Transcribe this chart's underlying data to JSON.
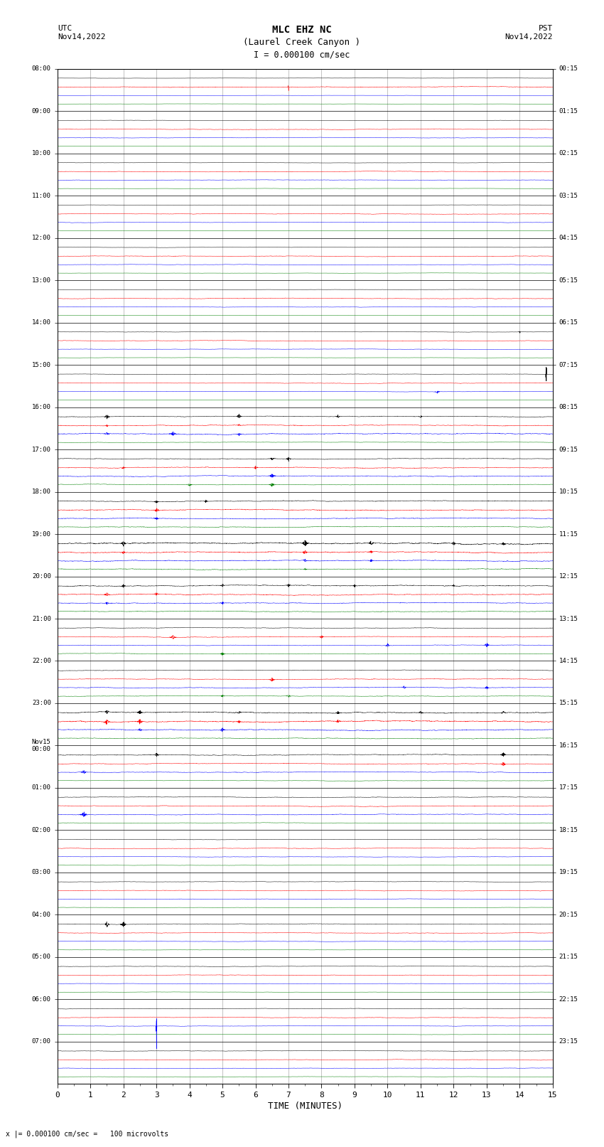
{
  "title_line1": "MLC EHZ NC",
  "title_line2": "(Laurel Creek Canyon )",
  "scale_text": "I = 0.000100 cm/sec",
  "bottom_note": "x |= 0.000100 cm/sec =   100 microvolts",
  "utc_label": "UTC\nNov14,2022",
  "pst_label": "PST\nNov14,2022",
  "xlabel": "TIME (MINUTES)",
  "left_times": [
    "08:00",
    "09:00",
    "10:00",
    "11:00",
    "12:00",
    "13:00",
    "14:00",
    "15:00",
    "16:00",
    "17:00",
    "18:00",
    "19:00",
    "20:00",
    "21:00",
    "22:00",
    "23:00",
    "Nov15\n00:00",
    "01:00",
    "02:00",
    "03:00",
    "04:00",
    "05:00",
    "06:00",
    "07:00"
  ],
  "right_times": [
    "00:15",
    "01:15",
    "02:15",
    "03:15",
    "04:15",
    "05:15",
    "06:15",
    "07:15",
    "08:15",
    "09:15",
    "10:15",
    "11:15",
    "12:15",
    "13:15",
    "14:15",
    "15:15",
    "16:15",
    "17:15",
    "18:15",
    "19:15",
    "20:15",
    "21:15",
    "22:15",
    "23:15"
  ],
  "num_rows": 24,
  "traces_per_row": 4,
  "time_minutes": 15,
  "colors": [
    "black",
    "red",
    "blue",
    "green"
  ],
  "bg_color": "white",
  "grid_color": "#aaaaaa",
  "figsize": [
    8.5,
    16.13
  ],
  "dpi": 100,
  "xmin": 0,
  "xmax": 15,
  "xticks": [
    0,
    1,
    2,
    3,
    4,
    5,
    6,
    7,
    8,
    9,
    10,
    11,
    12,
    13,
    14,
    15
  ]
}
